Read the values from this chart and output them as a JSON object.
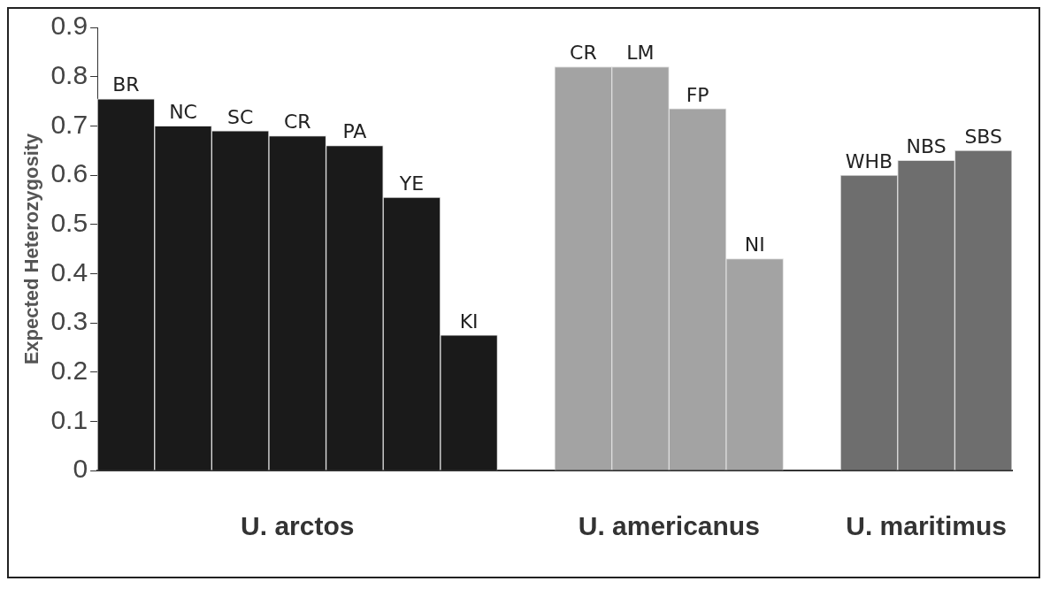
{
  "chart_data": {
    "type": "bar",
    "ylabel": "Expected Heterozygosity",
    "categories": [
      "BR",
      "NC",
      "SC",
      "CR",
      "PA",
      "YE",
      "KI",
      null,
      "CR",
      "LM",
      "FP",
      "NI",
      null,
      "WHB",
      "NBS",
      "SBS"
    ],
    "values": [
      0.755,
      0.7,
      0.69,
      0.68,
      0.66,
      0.555,
      0.275,
      null,
      0.82,
      0.82,
      0.735,
      0.43,
      null,
      0.6,
      0.63,
      0.65
    ],
    "colors": [
      "#1a1a1a",
      "#1a1a1a",
      "#1a1a1a",
      "#1a1a1a",
      "#1a1a1a",
      "#1a1a1a",
      "#1a1a1a",
      "#1a1a1a",
      "#a3a3a3",
      "#a3a3a3",
      "#a3a3a3",
      "#a3a3a3",
      "#a3a3a3",
      "#6e6e6e",
      "#6e6e6e",
      "#6e6e6e"
    ],
    "ylim": [
      0,
      0.9
    ],
    "yticks": [
      0,
      0.1,
      0.2,
      0.3,
      0.4,
      0.5,
      0.6,
      0.7,
      0.8,
      0.9
    ],
    "annotations": [
      "U. arctos",
      "U. americanus",
      "U. maritimus"
    ],
    "grid": false,
    "legend": false
  }
}
